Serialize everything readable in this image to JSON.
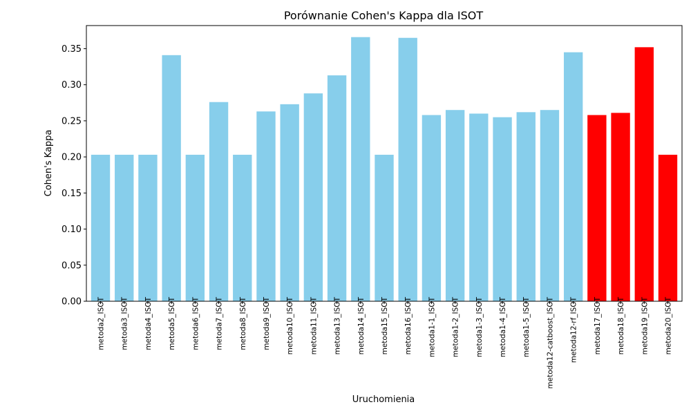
{
  "chart_data": {
    "type": "bar",
    "title": "Porównanie Cohen's Kappa dla ISOT",
    "xlabel": "Uruchomienia",
    "ylabel": "Cohen's Kappa",
    "ylim": [
      0,
      0.382
    ],
    "yticks": [
      "0.00",
      "0.05",
      "0.10",
      "0.15",
      "0.20",
      "0.25",
      "0.30",
      "0.35"
    ],
    "grid": false,
    "legend": "none",
    "categories": [
      "metoda2_ISOT",
      "metoda3_ISOT",
      "metoda4_ISOT",
      "metoda5_ISOT",
      "metoda6_ISOT",
      "metoda7_ISOT",
      "metoda8_ISOT",
      "metoda9_ISOT",
      "metoda10_ISOT",
      "metoda11_ISOT",
      "metoda13_ISOT",
      "metoda14_ISOT",
      "metoda15_ISOT",
      "metoda16_ISOT",
      "metoda1-1_ISOT",
      "metoda1-2_ISOT",
      "metoda1-3_ISOT",
      "metoda1-4_ISOT",
      "metoda1-5_ISOT",
      "metoda12-catboost_ISOT",
      "metoda12-rf_ISOT",
      "metoda17_ISOT",
      "metoda18_ISOT",
      "metoda19_ISOT",
      "metoda20_ISOT"
    ],
    "values": [
      0.203,
      0.203,
      0.203,
      0.341,
      0.203,
      0.276,
      0.203,
      0.263,
      0.273,
      0.288,
      0.313,
      0.366,
      0.203,
      0.365,
      0.258,
      0.265,
      0.26,
      0.255,
      0.262,
      0.265,
      0.345,
      0.258,
      0.261,
      0.352,
      0.203
    ],
    "bar_colors": [
      "#87CEEB",
      "#87CEEB",
      "#87CEEB",
      "#87CEEB",
      "#87CEEB",
      "#87CEEB",
      "#87CEEB",
      "#87CEEB",
      "#87CEEB",
      "#87CEEB",
      "#87CEEB",
      "#87CEEB",
      "#87CEEB",
      "#87CEEB",
      "#87CEEB",
      "#87CEEB",
      "#87CEEB",
      "#87CEEB",
      "#87CEEB",
      "#87CEEB",
      "#87CEEB",
      "#FF0000",
      "#FF0000",
      "#FF0000",
      "#FF0000"
    ]
  }
}
